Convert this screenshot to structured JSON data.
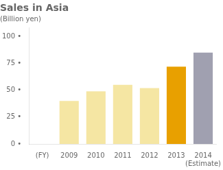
{
  "chart_data": {
    "type": "bar",
    "title": "Sales in Asia",
    "subtitle": "(Billion yen)",
    "categories": [
      "(FY)",
      "2009",
      "2010",
      "2011",
      "2012",
      "2013",
      "2014\n(Estimate)"
    ],
    "values": [
      0,
      40,
      49,
      55,
      52,
      72,
      85
    ],
    "colors": [
      "#ffffff",
      "#f5e6a3",
      "#f5e6a3",
      "#f5e6a3",
      "#f5e6a3",
      "#e8a000",
      "#a0a0b0"
    ],
    "ylim": [
      0,
      108
    ],
    "yticks": [
      {
        "value": 0,
        "label": "0 •"
      },
      {
        "value": 25,
        "label": "25 •"
      },
      {
        "value": 50,
        "label": "50 •"
      },
      {
        "value": 75,
        "label": "75 •"
      },
      {
        "value": 100,
        "label": "100 •"
      }
    ],
    "grid": false
  }
}
